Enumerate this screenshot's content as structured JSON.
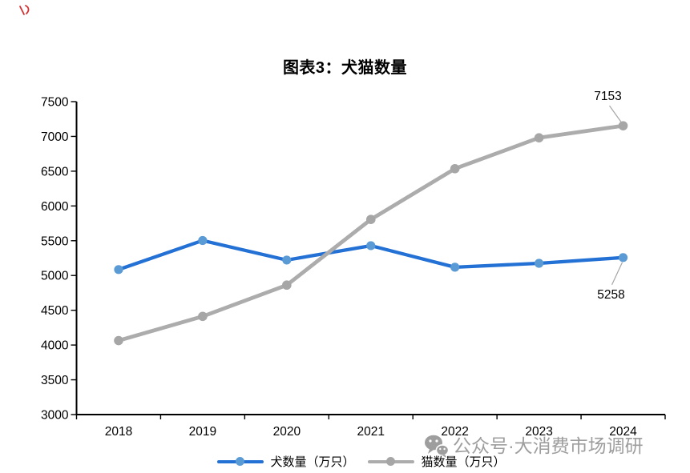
{
  "chart_data": {
    "type": "line",
    "title": "图表3：犬猫数量",
    "categories": [
      "2018",
      "2019",
      "2020",
      "2021",
      "2022",
      "2023",
      "2024"
    ],
    "series": [
      {
        "name": "犬数量（万只）",
        "values": [
          5085,
          5503,
          5222,
          5429,
          5119,
          5175,
          5258
        ],
        "color": "#2471D5",
        "marker_color": "#5B9BD5",
        "end_label": "5258",
        "end_label_position": "below"
      },
      {
        "name": "猫数量（万只）",
        "values": [
          4064,
          4412,
          4862,
          5806,
          6536,
          6980,
          7153
        ],
        "color": "#ACACAC",
        "marker_color": "#A6A6A6",
        "end_label": "7153",
        "end_label_position": "above"
      }
    ],
    "ylim": [
      3000,
      7500
    ],
    "yticks": [
      3000,
      3500,
      4000,
      4500,
      5000,
      5500,
      6000,
      6500,
      7000,
      7500
    ],
    "grid": false,
    "legend_position": "bottom",
    "axis_color": "#000000",
    "tick_label_color": "#000000",
    "leader_line_color": "#A6A6A6"
  },
  "watermark": {
    "icon": "wechat-icon",
    "text": "公众号·大消费市场调研",
    "color": "#9E9E9E"
  },
  "annotation": {
    "red_mark_color": "#D03030"
  }
}
